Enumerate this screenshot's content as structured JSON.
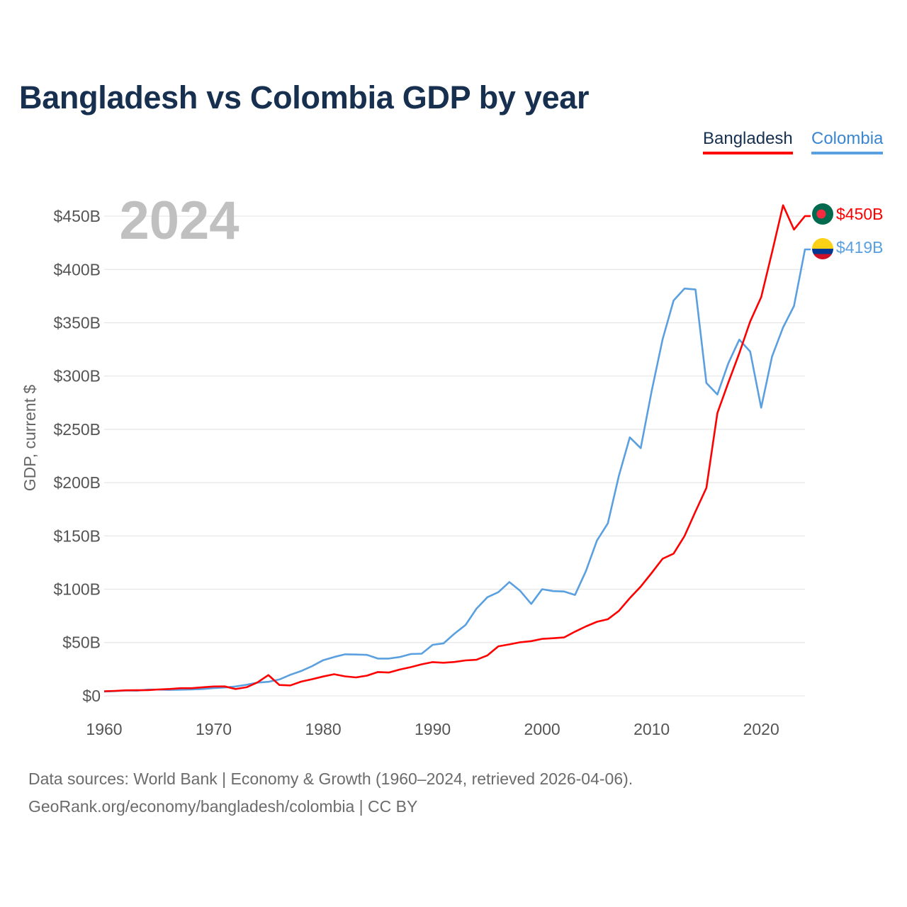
{
  "colors": {
    "bangladesh": "#ff0000",
    "colombia": "#5aa0e0",
    "title": "#17304f",
    "year": "#c0c0c0",
    "grid": "#e6e6e6",
    "tick": "#555555"
  },
  "footer": {
    "source": "Data sources: World Bank | Economy & Growth (1960–2024, retrieved 2026-04-06).",
    "credit": "GeoRank.org/economy/bangladesh/colombia | CC BY"
  },
  "chart_data": {
    "type": "line",
    "title": "Bangladesh vs Colombia GDP by year",
    "ylabel": "GDP, current $",
    "xlabel": "",
    "year_label": "2024",
    "xlim": [
      1960,
      2024
    ],
    "ylim": [
      -20,
      470
    ],
    "y_ticks": [
      {
        "value": 0,
        "label": "$0"
      },
      {
        "value": 50,
        "label": "$50B"
      },
      {
        "value": 100,
        "label": "$100B"
      },
      {
        "value": 150,
        "label": "$150B"
      },
      {
        "value": 200,
        "label": "$200B"
      },
      {
        "value": 250,
        "label": "$250B"
      },
      {
        "value": 300,
        "label": "$300B"
      },
      {
        "value": 350,
        "label": "$350B"
      },
      {
        "value": 400,
        "label": "$400B"
      },
      {
        "value": 450,
        "label": "$450B"
      }
    ],
    "x_ticks": [
      {
        "value": 1960,
        "label": "1960"
      },
      {
        "value": 1970,
        "label": "1970"
      },
      {
        "value": 1980,
        "label": "1980"
      },
      {
        "value": 1990,
        "label": "1990"
      },
      {
        "value": 2000,
        "label": "2000"
      },
      {
        "value": 2010,
        "label": "2010"
      },
      {
        "value": 2020,
        "label": "2020"
      }
    ],
    "x": [
      1960,
      1961,
      1962,
      1963,
      1964,
      1965,
      1966,
      1967,
      1968,
      1969,
      1970,
      1971,
      1972,
      1973,
      1974,
      1975,
      1976,
      1977,
      1978,
      1979,
      1980,
      1981,
      1982,
      1983,
      1984,
      1985,
      1986,
      1987,
      1988,
      1989,
      1990,
      1991,
      1992,
      1993,
      1994,
      1995,
      1996,
      1997,
      1998,
      1999,
      2000,
      2001,
      2002,
      2003,
      2004,
      2005,
      2006,
      2007,
      2008,
      2009,
      2010,
      2011,
      2012,
      2013,
      2014,
      2015,
      2016,
      2017,
      2018,
      2019,
      2020,
      2021,
      2022,
      2023,
      2024
    ],
    "series": [
      {
        "name": "Bangladesh",
        "key": "bangladesh",
        "end_label": "$450B",
        "values": [
          4.3,
          4.6,
          5.1,
          5.2,
          5.3,
          5.9,
          6.4,
          7.1,
          7.1,
          8.0,
          8.7,
          8.8,
          6.3,
          8.0,
          12.5,
          19.4,
          10.1,
          9.7,
          13.3,
          15.6,
          18.1,
          20.2,
          18.2,
          17.2,
          18.9,
          22.3,
          21.8,
          24.6,
          26.9,
          29.5,
          31.6,
          31.0,
          31.7,
          33.2,
          33.8,
          37.9,
          46.4,
          48.2,
          50.2,
          51.3,
          53.4,
          54.0,
          54.7,
          60.2,
          65.1,
          69.4,
          71.8,
          79.6,
          91.6,
          102.5,
          115.3,
          128.6,
          133.4,
          149.9,
          172.9,
          195.1,
          265.2,
          293.8,
          321.4,
          351.2,
          374.0,
          416.3,
          460.2,
          437.4,
          450.1
        ]
      },
      {
        "name": "Colombia",
        "key": "colombia",
        "end_label": "$419B",
        "values": [
          4.0,
          4.4,
          4.9,
          4.8,
          5.8,
          5.8,
          5.5,
          5.7,
          5.9,
          6.4,
          7.2,
          7.8,
          8.7,
          10.3,
          12.4,
          13.1,
          15.3,
          19.7,
          23.3,
          27.9,
          33.4,
          36.4,
          38.9,
          38.7,
          38.4,
          34.9,
          34.9,
          36.4,
          39.2,
          39.5,
          47.8,
          49.2,
          58.4,
          66.4,
          81.7,
          92.5,
          97.2,
          106.7,
          98.4,
          86.2,
          100.0,
          98.2,
          97.9,
          94.6,
          117.1,
          145.6,
          161.8,
          206.2,
          242.5,
          232.4,
          286.1,
          334.5,
          370.9,
          382.1,
          381.2,
          293.5,
          282.7,
          311.9,
          334.2,
          323.0,
          270.3,
          318.5,
          345.6,
          365.7,
          418.8
        ]
      }
    ]
  }
}
